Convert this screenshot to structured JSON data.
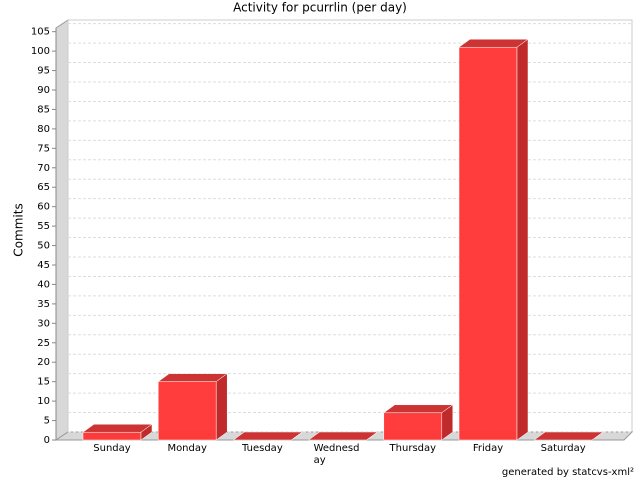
{
  "chart_data": {
    "type": "bar3d",
    "title": "Activity for pcurrlin (per day)",
    "y_label": "Commits",
    "categories": [
      "Sunday",
      "Monday",
      "Tuesday",
      "Wednesday",
      "Thursday",
      "Friday",
      "Saturday"
    ],
    "values": [
      2,
      15,
      0,
      0,
      7,
      101,
      0
    ],
    "color": "#ff3333",
    "ylim": [
      0,
      108
    ],
    "yticks": [
      0,
      5,
      10,
      15,
      20,
      25,
      30,
      35,
      40,
      45,
      50,
      55,
      60,
      65,
      70,
      75,
      80,
      85,
      90,
      95,
      100,
      105
    ],
    "grid": true,
    "footer": "generated by statcvs-xml²"
  }
}
